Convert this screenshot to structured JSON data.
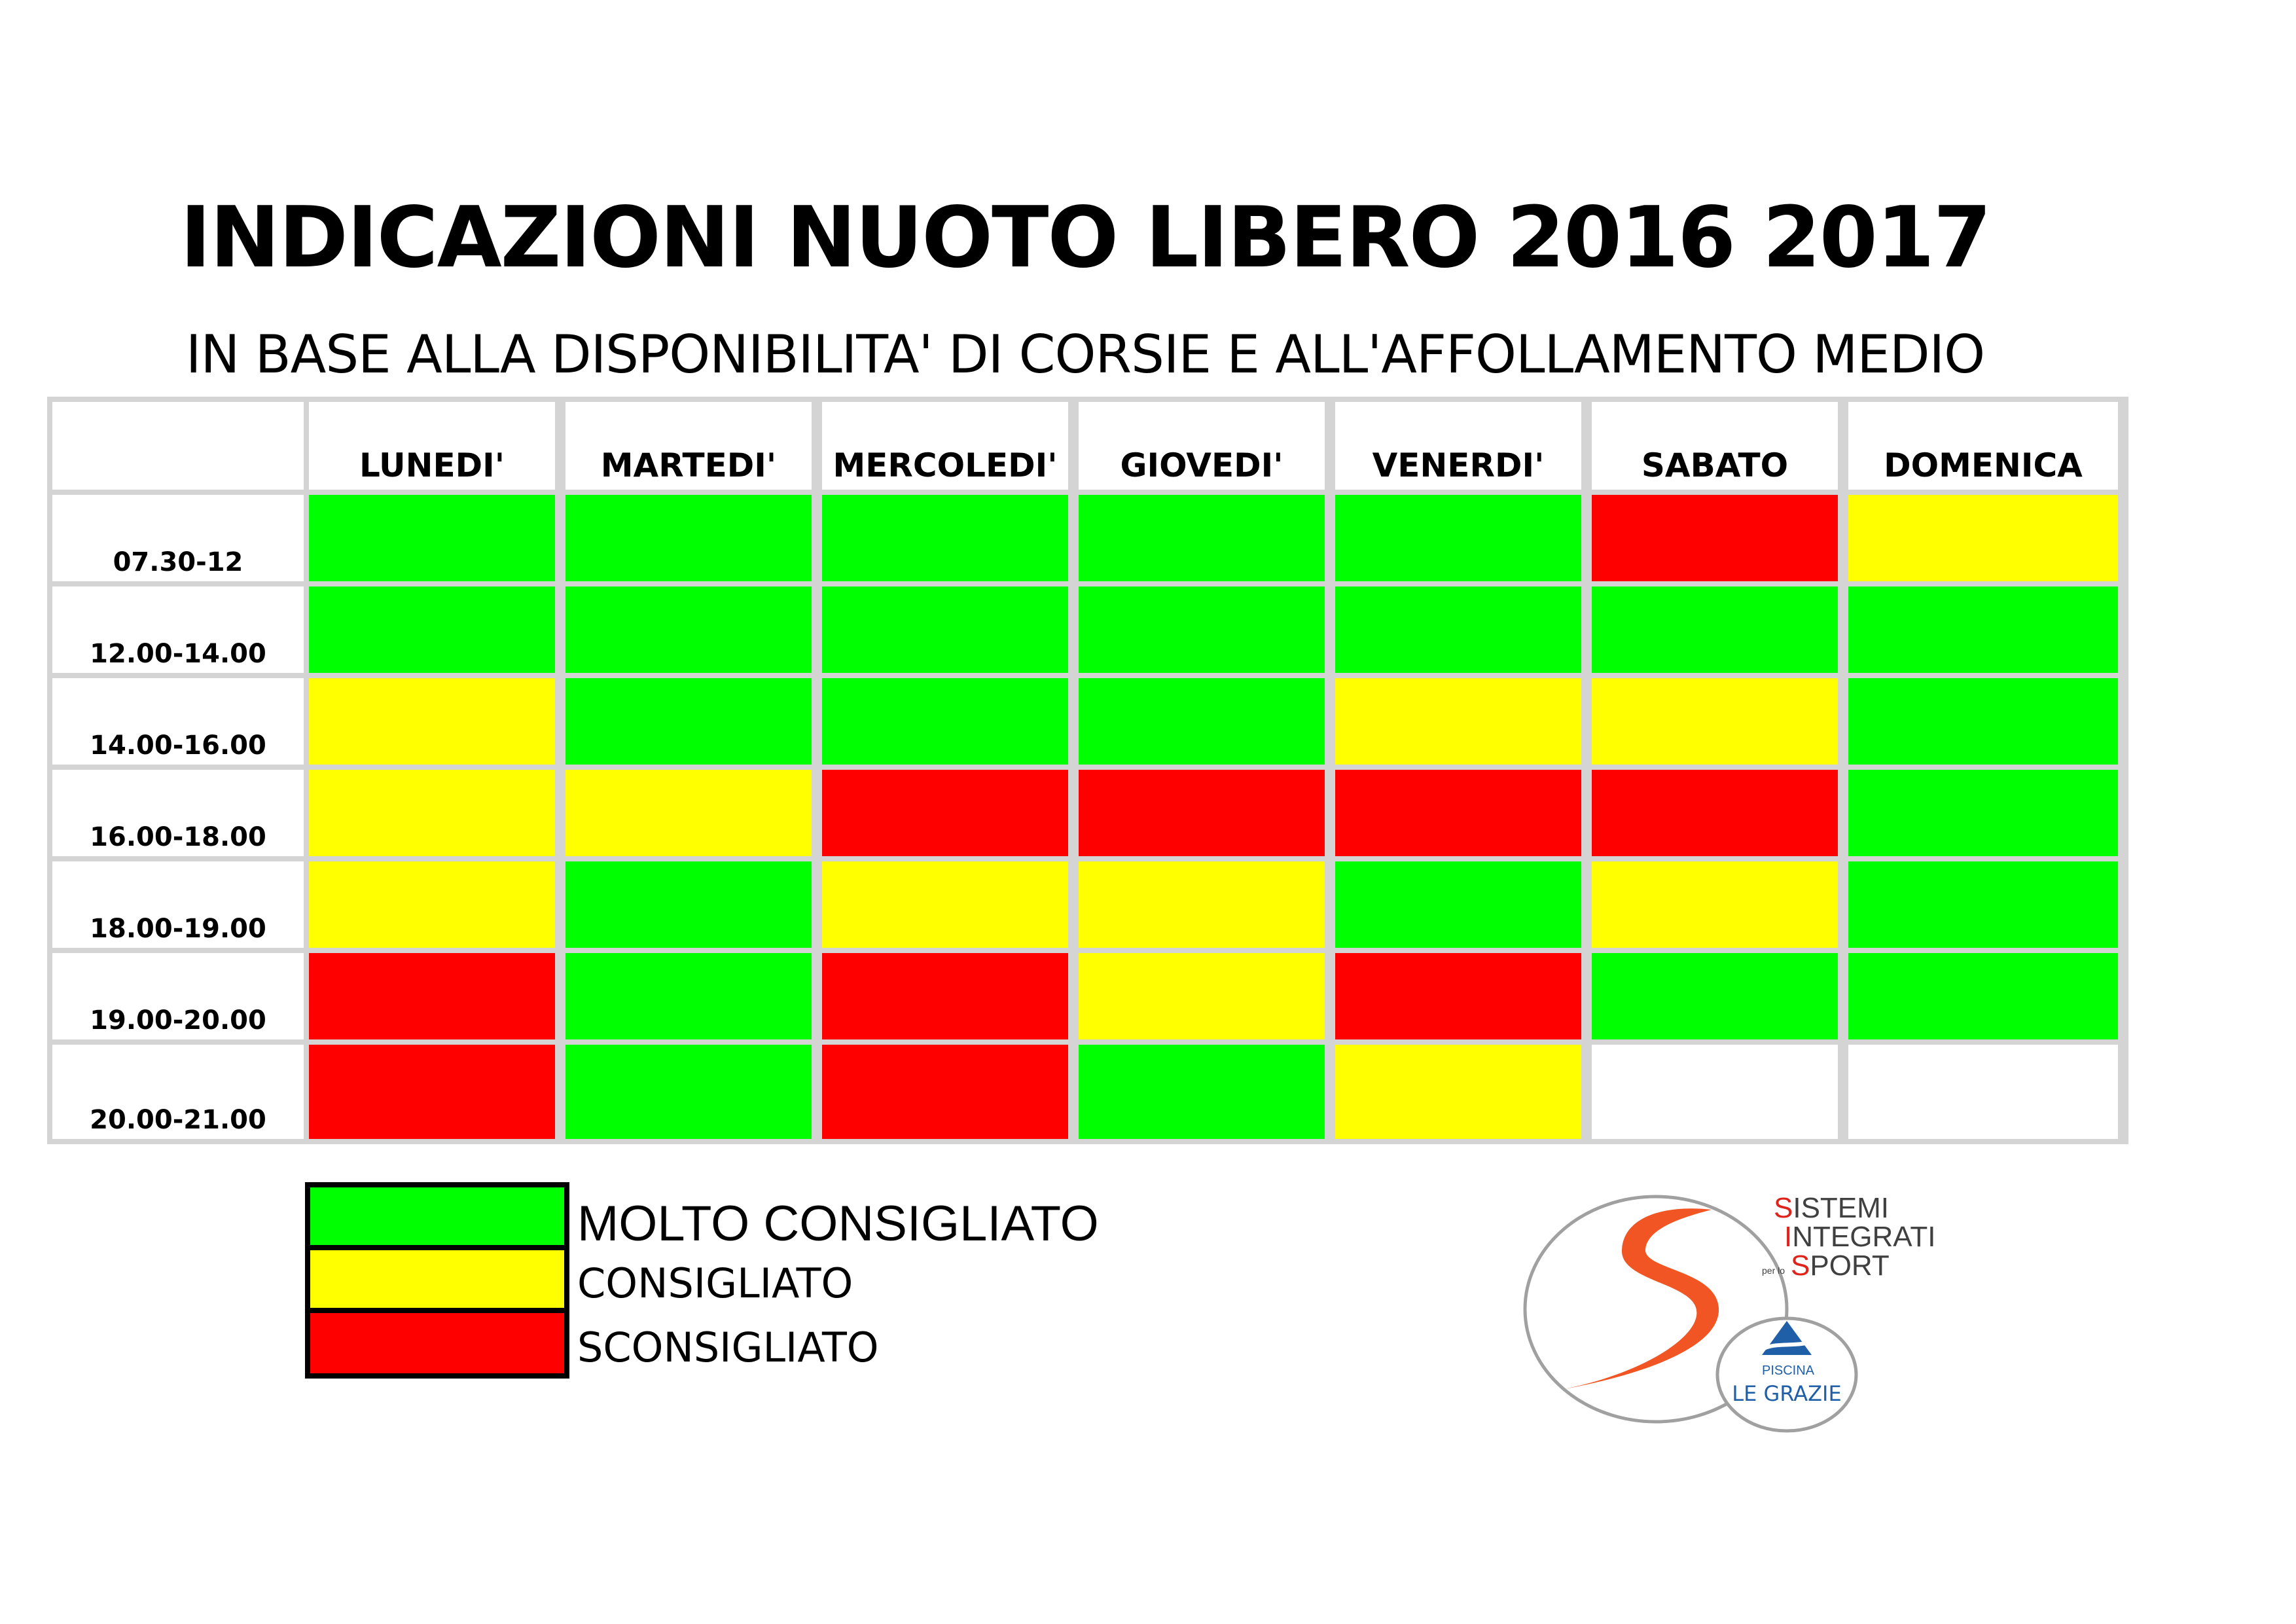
{
  "title": "INDICAZIONI NUOTO LIBERO 2016 2017",
  "subtitle": "IN BASE ALLA DISPONIBILITA' DI CORSIE E ALL'AFFOLLAMENTO MEDIO",
  "colors": {
    "green": "#00ff00",
    "yellow": "#ffff00",
    "red": "#ff0000",
    "empty": "#ffffff",
    "grid": "#d4d4d4",
    "logo_orange": "#f05523",
    "logo_red": "#e0231a",
    "logo_blue": "#1f5fa8",
    "logo_grey": "#a0a0a0"
  },
  "schedule": {
    "days": [
      "LUNEDI'",
      "MARTEDI'",
      "MERCOLEDI'",
      "GIOVEDI'",
      "VENERDI'",
      "SABATO",
      "DOMENICA"
    ],
    "rows": [
      {
        "time": "07.30-12",
        "status": [
          "green",
          "green",
          "green",
          "green",
          "green",
          "red",
          "yellow"
        ]
      },
      {
        "time": "12.00-14.00",
        "status": [
          "green",
          "green",
          "green",
          "green",
          "green",
          "green",
          "green"
        ]
      },
      {
        "time": "14.00-16.00",
        "status": [
          "yellow",
          "green",
          "green",
          "green",
          "yellow",
          "yellow",
          "green"
        ]
      },
      {
        "time": "16.00-18.00",
        "status": [
          "yellow",
          "yellow",
          "red",
          "red",
          "red",
          "red",
          "green"
        ]
      },
      {
        "time": "18.00-19.00",
        "status": [
          "yellow",
          "green",
          "yellow",
          "yellow",
          "green",
          "yellow",
          "green"
        ]
      },
      {
        "time": "19.00-20.00",
        "status": [
          "red",
          "green",
          "red",
          "yellow",
          "red",
          "green",
          "green"
        ]
      },
      {
        "time": "20.00-21.00",
        "status": [
          "red",
          "green",
          "red",
          "green",
          "yellow",
          "empty",
          "empty"
        ]
      }
    ]
  },
  "legend": [
    {
      "color": "green",
      "label": "MOLTO CONSIGLIATO"
    },
    {
      "color": "yellow",
      "label": "CONSIGLIATO"
    },
    {
      "color": "red",
      "label": "SCONSIGLIATO"
    }
  ],
  "logo": {
    "brand_lines": [
      {
        "initial": "S",
        "rest": "ISTEMI"
      },
      {
        "initial": "I",
        "rest": "NTEGRATI"
      },
      {
        "initial": "S",
        "rest": "PORT"
      }
    ],
    "small_text": "per lo",
    "pool_top": "PISCINA",
    "pool_name": "LE GRAZIE"
  }
}
